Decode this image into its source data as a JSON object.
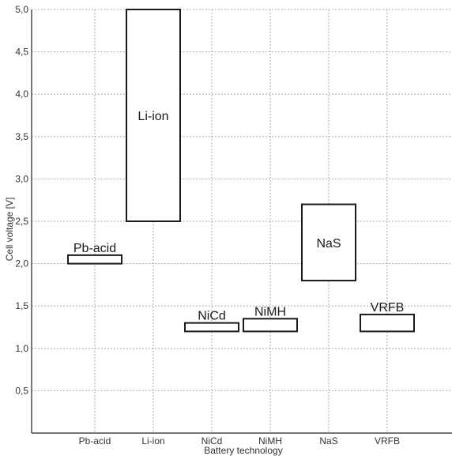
{
  "chart_data": {
    "type": "bar",
    "chart_style": "floating range boxes",
    "title": "",
    "xlabel": "Battery technology",
    "ylabel": "Cell voltage [V]",
    "ylim": [
      0,
      5.0
    ],
    "y_ticks": [
      "0,5",
      "1,0",
      "1,5",
      "2,0",
      "2,5",
      "3,0",
      "3,5",
      "4,0",
      "4,5",
      "5,0"
    ],
    "y_tick_values": [
      0.5,
      1.0,
      1.5,
      2.0,
      2.5,
      3.0,
      3.5,
      4.0,
      4.5,
      5.0
    ],
    "categories": [
      "Pb-acid",
      "Li-ion",
      "NiCd",
      "NiMH",
      "NaS",
      "VRFB"
    ],
    "ranges": [
      {
        "category": "Pb-acid",
        "min": 2.0,
        "max": 2.1,
        "label": "Pb-acid",
        "label_position": "above"
      },
      {
        "category": "Li-ion",
        "min": 2.5,
        "max": 5.0,
        "label": "Li-ion",
        "label_position": "inside"
      },
      {
        "category": "NiCd",
        "min": 1.2,
        "max": 1.3,
        "label": "NiCd",
        "label_position": "above"
      },
      {
        "category": "NiMH",
        "min": 1.2,
        "max": 1.35,
        "label": "NiMH",
        "label_position": "above"
      },
      {
        "category": "NaS",
        "min": 1.8,
        "max": 2.7,
        "label": "NaS",
        "label_position": "inside"
      },
      {
        "category": "VRFB",
        "min": 1.2,
        "max": 1.4,
        "label": "VRFB",
        "label_position": "above"
      }
    ],
    "grid": true,
    "legend": "none",
    "colors": {
      "box_stroke": "#1a1a1a",
      "box_fill": "#ffffff",
      "grid": "#9a9a9a"
    }
  }
}
